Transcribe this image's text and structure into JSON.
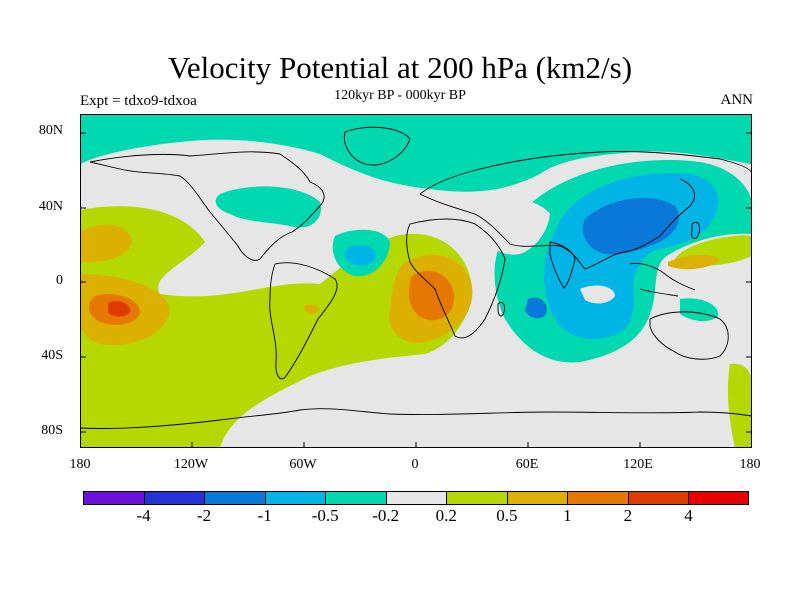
{
  "title": "Velocity Potential at 200 hPa (km2/s)",
  "subtitle": "120kyr BP - 000kyr BP",
  "left_label": "Expt = tdxo9-tdxoa",
  "right_label": "ANN",
  "lat_ticks": [
    "80N",
    "40N",
    "0",
    "40S",
    "80S"
  ],
  "lon_ticks": [
    "180",
    "120W",
    "60W",
    "0",
    "60E",
    "120E",
    "180"
  ],
  "colorbar": {
    "colors": [
      "#6a12d8",
      "#2432d6",
      "#0a78d8",
      "#00b4e6",
      "#00d8b0",
      "#e6e6e6",
      "#b4d800",
      "#dcb000",
      "#e47800",
      "#dc3c00",
      "#e60000"
    ],
    "labels": [
      "-4",
      "-2",
      "-1",
      "-0.5",
      "-0.2",
      "0.2",
      "0.5",
      "1",
      "2",
      "4"
    ]
  }
}
